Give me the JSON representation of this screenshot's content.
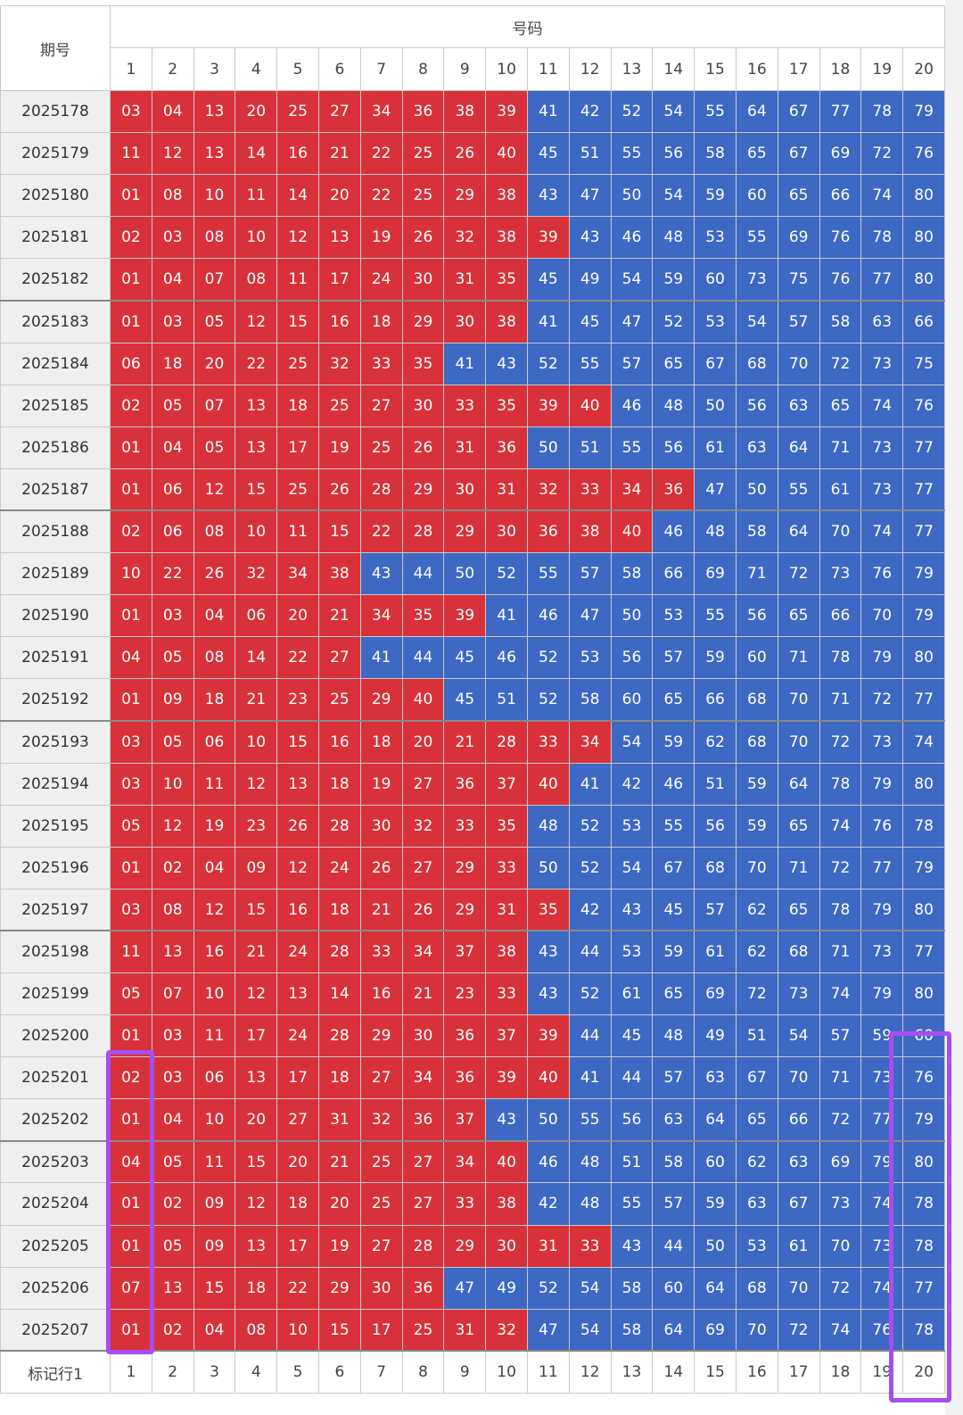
{
  "table": {
    "issue_header": "期号",
    "numbers_header": "号码",
    "columns": [
      1,
      2,
      3,
      4,
      5,
      6,
      7,
      8,
      9,
      10,
      11,
      12,
      13,
      14,
      15,
      16,
      17,
      18,
      19,
      20
    ],
    "colors": {
      "red": "#d8313a",
      "blue": "#3d69c4"
    },
    "rows": [
      {
        "issue": "2025178",
        "red": [
          "03",
          "04",
          "13",
          "20",
          "25",
          "27",
          "34",
          "36",
          "38",
          "39"
        ],
        "blue": [
          "41",
          "42",
          "52",
          "54",
          "55",
          "64",
          "67",
          "77",
          "78",
          "79"
        ]
      },
      {
        "issue": "2025179",
        "red": [
          "11",
          "12",
          "13",
          "14",
          "16",
          "21",
          "22",
          "25",
          "26",
          "40"
        ],
        "blue": [
          "45",
          "51",
          "55",
          "56",
          "58",
          "65",
          "67",
          "69",
          "72",
          "76"
        ]
      },
      {
        "issue": "2025180",
        "red": [
          "01",
          "08",
          "10",
          "11",
          "14",
          "20",
          "22",
          "25",
          "29",
          "38"
        ],
        "blue": [
          "43",
          "47",
          "50",
          "54",
          "59",
          "60",
          "65",
          "66",
          "74",
          "80"
        ]
      },
      {
        "issue": "2025181",
        "red": [
          "02",
          "03",
          "08",
          "10",
          "12",
          "13",
          "19",
          "26",
          "32",
          "38",
          "39"
        ],
        "blue": [
          "43",
          "46",
          "48",
          "53",
          "55",
          "69",
          "76",
          "78",
          "80"
        ]
      },
      {
        "issue": "2025182",
        "red": [
          "01",
          "04",
          "07",
          "08",
          "11",
          "17",
          "24",
          "30",
          "31",
          "35"
        ],
        "blue": [
          "45",
          "49",
          "54",
          "59",
          "60",
          "73",
          "75",
          "76",
          "77",
          "80"
        ]
      },
      {
        "issue": "2025183",
        "red": [
          "01",
          "03",
          "05",
          "12",
          "15",
          "16",
          "18",
          "29",
          "30",
          "38"
        ],
        "blue": [
          "41",
          "45",
          "47",
          "52",
          "53",
          "54",
          "57",
          "58",
          "63",
          "66"
        ]
      },
      {
        "issue": "2025184",
        "red": [
          "06",
          "18",
          "20",
          "22",
          "25",
          "32",
          "33",
          "35"
        ],
        "blue": [
          "41",
          "43",
          "52",
          "55",
          "57",
          "65",
          "67",
          "68",
          "70",
          "72",
          "73",
          "75"
        ]
      },
      {
        "issue": "2025185",
        "red": [
          "02",
          "05",
          "07",
          "13",
          "18",
          "25",
          "27",
          "30",
          "33",
          "35",
          "39",
          "40"
        ],
        "blue": [
          "46",
          "48",
          "50",
          "56",
          "63",
          "65",
          "74",
          "76"
        ]
      },
      {
        "issue": "2025186",
        "red": [
          "01",
          "04",
          "05",
          "13",
          "17",
          "19",
          "25",
          "26",
          "31",
          "36"
        ],
        "blue": [
          "50",
          "51",
          "55",
          "56",
          "61",
          "63",
          "64",
          "71",
          "73",
          "77"
        ]
      },
      {
        "issue": "2025187",
        "red": [
          "01",
          "06",
          "12",
          "15",
          "25",
          "26",
          "28",
          "29",
          "30",
          "31",
          "32",
          "33",
          "34",
          "36"
        ],
        "blue": [
          "47",
          "50",
          "55",
          "61",
          "73",
          "77"
        ]
      },
      {
        "issue": "2025188",
        "red": [
          "02",
          "06",
          "08",
          "10",
          "11",
          "15",
          "22",
          "28",
          "29",
          "30",
          "36",
          "38",
          "40"
        ],
        "blue": [
          "46",
          "48",
          "58",
          "64",
          "70",
          "74",
          "77"
        ]
      },
      {
        "issue": "2025189",
        "red": [
          "10",
          "22",
          "26",
          "32",
          "34",
          "38"
        ],
        "blue": [
          "43",
          "44",
          "50",
          "52",
          "55",
          "57",
          "58",
          "66",
          "69",
          "71",
          "72",
          "73",
          "76",
          "79"
        ]
      },
      {
        "issue": "2025190",
        "red": [
          "01",
          "03",
          "04",
          "06",
          "20",
          "21",
          "34",
          "35",
          "39"
        ],
        "blue": [
          "41",
          "46",
          "47",
          "50",
          "53",
          "55",
          "56",
          "65",
          "66",
          "70",
          "79"
        ]
      },
      {
        "issue": "2025191",
        "red": [
          "04",
          "05",
          "08",
          "14",
          "22",
          "27"
        ],
        "blue": [
          "41",
          "44",
          "45",
          "46",
          "52",
          "53",
          "56",
          "57",
          "59",
          "60",
          "71",
          "78",
          "79",
          "80"
        ]
      },
      {
        "issue": "2025192",
        "red": [
          "01",
          "09",
          "18",
          "21",
          "23",
          "25",
          "29",
          "40"
        ],
        "blue": [
          "45",
          "51",
          "52",
          "58",
          "60",
          "65",
          "66",
          "68",
          "70",
          "71",
          "72",
          "77"
        ]
      },
      {
        "issue": "2025193",
        "red": [
          "03",
          "05",
          "06",
          "10",
          "15",
          "16",
          "18",
          "20",
          "21",
          "28",
          "33",
          "34"
        ],
        "blue": [
          "54",
          "59",
          "62",
          "68",
          "70",
          "72",
          "73",
          "74"
        ]
      },
      {
        "issue": "2025194",
        "red": [
          "03",
          "10",
          "11",
          "12",
          "13",
          "18",
          "19",
          "27",
          "36",
          "37",
          "40"
        ],
        "blue": [
          "41",
          "42",
          "46",
          "51",
          "59",
          "64",
          "78",
          "79",
          "80"
        ]
      },
      {
        "issue": "2025195",
        "red": [
          "05",
          "12",
          "19",
          "23",
          "26",
          "28",
          "30",
          "32",
          "33",
          "35"
        ],
        "blue": [
          "48",
          "52",
          "53",
          "55",
          "56",
          "59",
          "65",
          "74",
          "76",
          "78"
        ]
      },
      {
        "issue": "2025196",
        "red": [
          "01",
          "02",
          "04",
          "09",
          "12",
          "24",
          "26",
          "27",
          "29",
          "33"
        ],
        "blue": [
          "50",
          "52",
          "54",
          "67",
          "68",
          "70",
          "71",
          "72",
          "77",
          "79"
        ]
      },
      {
        "issue": "2025197",
        "red": [
          "03",
          "08",
          "12",
          "15",
          "16",
          "18",
          "21",
          "26",
          "29",
          "31",
          "35"
        ],
        "blue": [
          "42",
          "43",
          "45",
          "57",
          "62",
          "65",
          "78",
          "79",
          "80"
        ]
      },
      {
        "issue": "2025198",
        "red": [
          "11",
          "13",
          "16",
          "21",
          "24",
          "28",
          "33",
          "34",
          "37",
          "38"
        ],
        "blue": [
          "43",
          "44",
          "53",
          "59",
          "61",
          "62",
          "68",
          "71",
          "73",
          "77"
        ]
      },
      {
        "issue": "2025199",
        "red": [
          "05",
          "07",
          "10",
          "12",
          "13",
          "14",
          "16",
          "21",
          "23",
          "33"
        ],
        "blue": [
          "43",
          "52",
          "61",
          "65",
          "69",
          "72",
          "73",
          "74",
          "79",
          "80"
        ]
      },
      {
        "issue": "2025200",
        "red": [
          "01",
          "03",
          "11",
          "17",
          "24",
          "28",
          "29",
          "30",
          "36",
          "37",
          "39"
        ],
        "blue": [
          "44",
          "45",
          "48",
          "49",
          "51",
          "54",
          "57",
          "59",
          "60"
        ]
      },
      {
        "issue": "2025201",
        "red": [
          "02",
          "03",
          "06",
          "13",
          "17",
          "18",
          "27",
          "34",
          "36",
          "39",
          "40"
        ],
        "blue": [
          "41",
          "44",
          "57",
          "63",
          "67",
          "70",
          "71",
          "73",
          "76"
        ]
      },
      {
        "issue": "2025202",
        "red": [
          "01",
          "04",
          "10",
          "20",
          "27",
          "31",
          "32",
          "36",
          "37"
        ],
        "blue": [
          "43",
          "50",
          "55",
          "56",
          "63",
          "64",
          "65",
          "66",
          "72",
          "77",
          "79"
        ]
      },
      {
        "issue": "2025203",
        "red": [
          "04",
          "05",
          "11",
          "15",
          "20",
          "21",
          "25",
          "27",
          "34",
          "40"
        ],
        "blue": [
          "46",
          "48",
          "51",
          "58",
          "60",
          "62",
          "63",
          "69",
          "79",
          "80"
        ]
      },
      {
        "issue": "2025204",
        "red": [
          "01",
          "02",
          "09",
          "12",
          "18",
          "20",
          "25",
          "27",
          "33",
          "38"
        ],
        "blue": [
          "42",
          "48",
          "55",
          "57",
          "59",
          "63",
          "67",
          "73",
          "74",
          "78"
        ]
      },
      {
        "issue": "2025205",
        "red": [
          "01",
          "05",
          "09",
          "13",
          "17",
          "19",
          "27",
          "28",
          "29",
          "30",
          "31",
          "33"
        ],
        "blue": [
          "43",
          "44",
          "50",
          "53",
          "61",
          "70",
          "73",
          "78"
        ]
      },
      {
        "issue": "2025206",
        "red": [
          "07",
          "13",
          "15",
          "18",
          "22",
          "29",
          "30",
          "36"
        ],
        "blue": [
          "47",
          "49",
          "52",
          "54",
          "58",
          "60",
          "64",
          "68",
          "70",
          "72",
          "74",
          "77"
        ]
      },
      {
        "issue": "2025207",
        "red": [
          "01",
          "02",
          "04",
          "08",
          "10",
          "15",
          "17",
          "25",
          "31",
          "32"
        ],
        "blue": [
          "47",
          "54",
          "58",
          "64",
          "69",
          "70",
          "72",
          "74",
          "76",
          "78"
        ]
      }
    ],
    "footer": {
      "label": "标记行1",
      "values": [
        1,
        2,
        3,
        4,
        5,
        6,
        7,
        8,
        9,
        10,
        11,
        12,
        13,
        14,
        15,
        16,
        17,
        18,
        19,
        20
      ]
    }
  }
}
